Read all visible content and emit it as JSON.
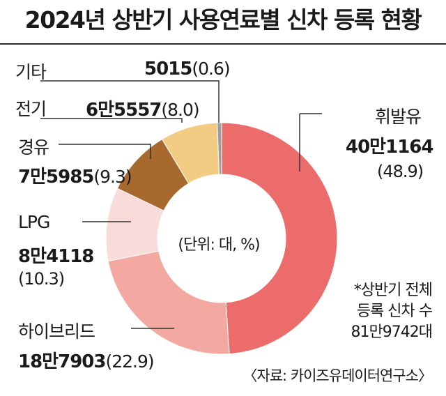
{
  "chart_data": {
    "type": "pie",
    "title": "2024년 상반기 사용연료별 신차 등록 현황",
    "unit_label": "(단위: 대, %)",
    "slices": [
      {
        "name": "휘발유",
        "value_text": "40만1164",
        "value": 401164,
        "pct": 48.9,
        "pct_text": "(48.9)",
        "color": "#eb6c6a"
      },
      {
        "name": "하이브리드",
        "value_text": "18만7903",
        "value": 187903,
        "pct": 22.9,
        "pct_text": "(22.9)",
        "color": "#f3a9a1"
      },
      {
        "name": "LPG",
        "value_text": "8만4118",
        "value": 84118,
        "pct": 10.3,
        "pct_text": "(10.3)",
        "color": "#f9dcd9"
      },
      {
        "name": "경유",
        "value_text": "7만5985",
        "value": 75985,
        "pct": 9.3,
        "pct_text": "(9.3)",
        "color": "#a8692e"
      },
      {
        "name": "전기",
        "value_text": "6만5557",
        "value": 65557,
        "pct": 8.0,
        "pct_text": "(8.0)",
        "color": "#f1cc82"
      },
      {
        "name": "기타",
        "value_text": "5015",
        "value": 5015,
        "pct": 0.6,
        "pct_text": "(0.6)",
        "color": "#9d9d9d"
      }
    ],
    "note_lines": [
      "*상반기 전체",
      "등록 신차 수",
      "81만9742대"
    ],
    "source": "〈자료: 카이즈유데이터연구소〉"
  }
}
